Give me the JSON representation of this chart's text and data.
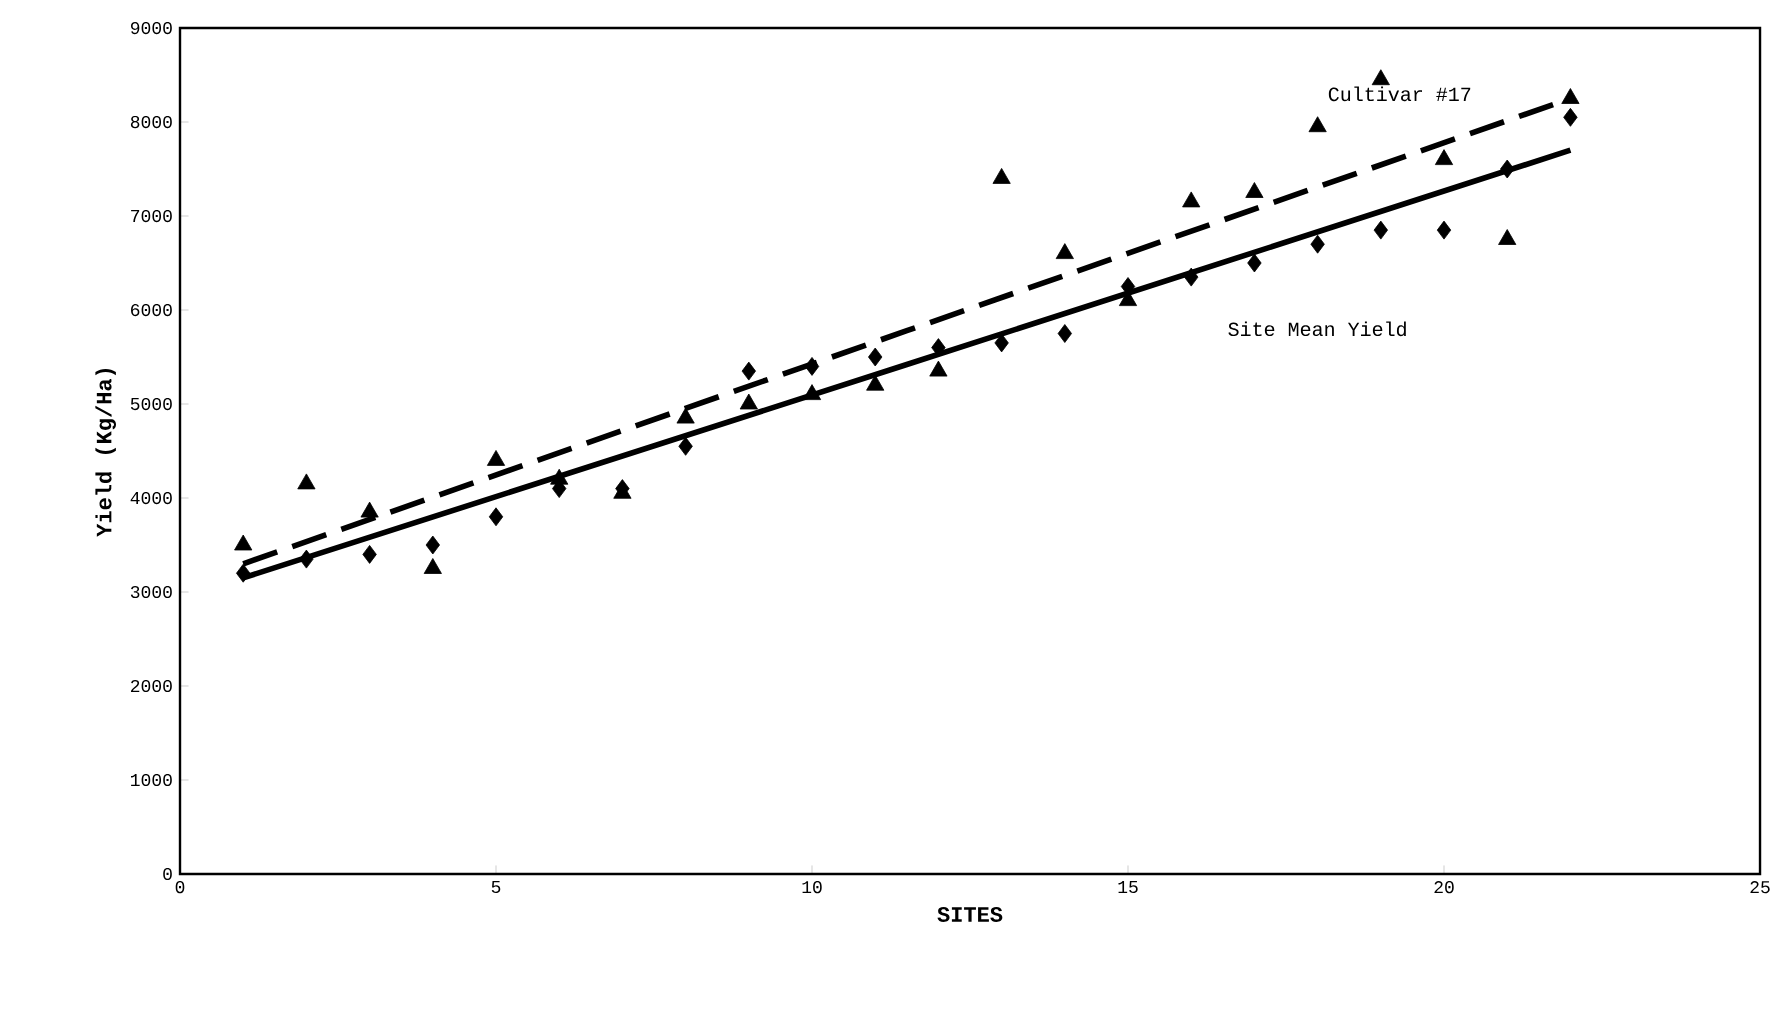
{
  "chart_data": {
    "type": "scatter",
    "xlabel": "SITES",
    "ylabel": "Yield (Kg/Ha)",
    "xlim": [
      0,
      25
    ],
    "xticks": [
      0,
      5,
      10,
      15,
      20,
      25
    ],
    "ylim": [
      0,
      9000
    ],
    "yticks": [
      0,
      1000,
      2000,
      3000,
      4000,
      5000,
      6000,
      7000,
      8000,
      9000
    ],
    "grid": false,
    "x": [
      1,
      2,
      3,
      4,
      5,
      6,
      7,
      8,
      9,
      10,
      11,
      12,
      13,
      14,
      15,
      16,
      17,
      18,
      19,
      20,
      21,
      22
    ],
    "series": [
      {
        "marker": "triangle",
        "color": "#000000",
        "values": [
          3500,
          4150,
          3850,
          3250,
          4400,
          4200,
          4050,
          4850,
          5000,
          5100,
          5200,
          5350,
          7400,
          6600,
          6100,
          7150,
          7250,
          7950,
          8450,
          7600,
          6750,
          8250
        ]
      },
      {
        "marker": "diamond",
        "color": "#000000",
        "values": [
          3200,
          3350,
          3400,
          3500,
          3800,
          4100,
          4100,
          4550,
          5350,
          5400,
          5500,
          5600,
          5650,
          5750,
          6250,
          6350,
          6500,
          6700,
          6850,
          6850,
          7500,
          8050
        ]
      },
      {
        "type": "line",
        "line_style": "solid",
        "marker": "none",
        "color": "#000000",
        "x": [
          1,
          11.5,
          22
        ],
        "values": [
          3150,
          5420,
          7700
        ]
      },
      {
        "type": "line",
        "line_style": "dashed",
        "marker": "none",
        "color": "#000000",
        "x": [
          1,
          11.5,
          22
        ],
        "values": [
          3300,
          5780,
          8250
        ]
      }
    ],
    "annotations": [
      "Cultivar #17",
      "Site Mean Yield"
    ]
  }
}
